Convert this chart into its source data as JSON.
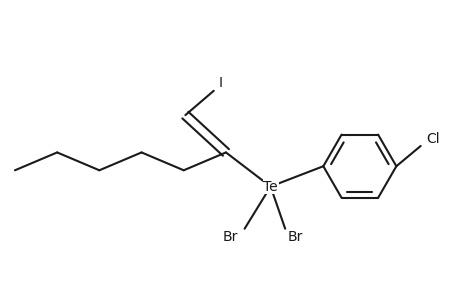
{
  "bg_color": "#ffffff",
  "line_color": "#1a1a1a",
  "line_width": 1.5,
  "font_size": 10,
  "font_family": "DejaVu Sans",
  "labels": {
    "Te": "Te",
    "Br1": "Br",
    "Br2": "Br",
    "Cl": "Cl",
    "I": "I"
  }
}
